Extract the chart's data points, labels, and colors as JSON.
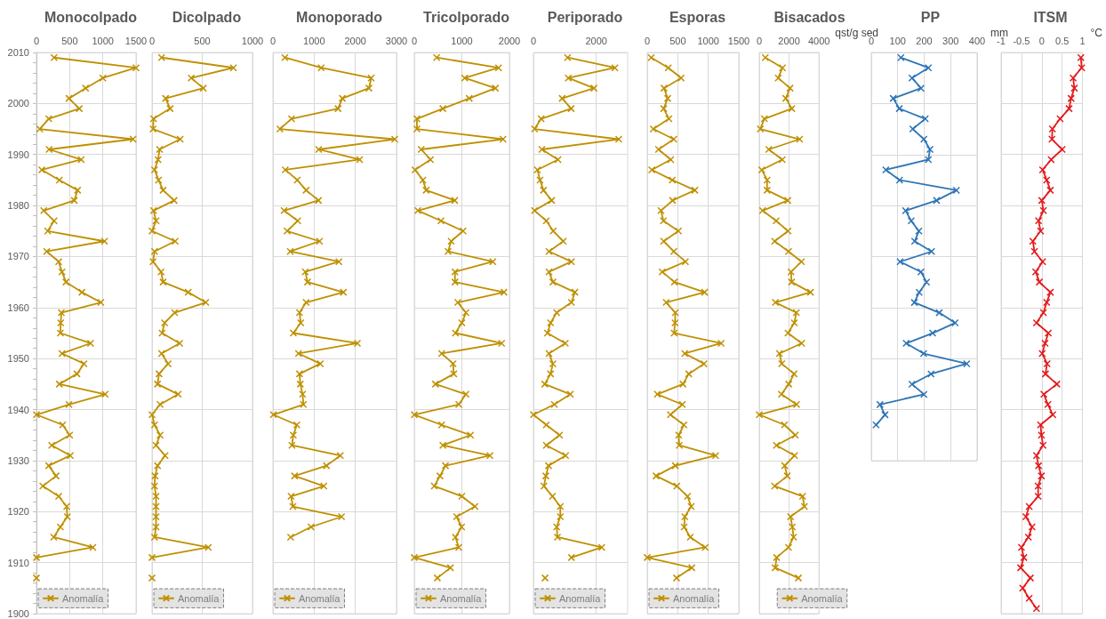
{
  "chart_data": [
    {
      "type": "line",
      "orientation": "horizontal",
      "title": "Monocolpado",
      "xlim": [
        0,
        1500
      ],
      "xticks": [
        0,
        500,
        1000,
        1500
      ],
      "ylim": [
        1900,
        2010
      ],
      "yticks": [
        1900,
        {
          "value": 1902,
          "label": null
        },
        {
          "value": 1904,
          "label": null
        },
        {
          "value": 1906,
          "label": null
        },
        {
          "value": 1908,
          "label": null
        },
        1910,
        {
          "value": 1912,
          "label": null
        },
        {
          "value": 1914,
          "label": null
        },
        {
          "value": 1916,
          "label": null
        },
        {
          "value": 1918,
          "label": null
        },
        1920,
        {
          "value": 1922,
          "label": null
        },
        {
          "value": 1924,
          "label": null
        },
        {
          "value": 1926,
          "label": null
        },
        {
          "value": 1928,
          "label": null
        },
        1930,
        {
          "value": 1932,
          "label": null
        },
        {
          "value": 1934,
          "label": null
        },
        {
          "value": 1936,
          "label": null
        },
        {
          "value": 1938,
          "label": null
        },
        1940,
        {
          "value": 1942,
          "label": null
        },
        {
          "value": 1944,
          "label": null
        },
        {
          "value": 1946,
          "label": null
        },
        {
          "value": 1948,
          "label": null
        },
        1950,
        {
          "value": 1952,
          "label": null
        },
        {
          "value": 1954,
          "label": null
        },
        {
          "value": 1956,
          "label": null
        },
        {
          "value": 1958,
          "label": null
        },
        1960,
        {
          "value": 1962,
          "label": null
        },
        {
          "value": 1964,
          "label": null
        },
        {
          "value": 1966,
          "label": null
        },
        {
          "value": 1968,
          "label": null
        },
        1970,
        {
          "value": 1972,
          "label": null
        },
        {
          "value": 1974,
          "label": null
        },
        {
          "value": 1976,
          "label": null
        },
        {
          "value": 1978,
          "label": null
        },
        1980,
        {
          "value": 1982,
          "label": null
        },
        {
          "value": 1984,
          "label": null
        },
        {
          "value": 1986,
          "label": null
        },
        {
          "value": 1988,
          "label": null
        },
        1990,
        {
          "value": 1992,
          "label": null
        },
        {
          "value": 1994,
          "label": null
        },
        {
          "value": 1996,
          "label": null
        },
        {
          "value": 1998,
          "label": null
        },
        2000,
        {
          "value": 2002,
          "label": null
        },
        {
          "value": 2004,
          "label": null
        },
        {
          "value": 2006,
          "label": null
        },
        {
          "value": 2008,
          "label": null
        },
        2010
      ],
      "grid": true,
      "legend": "bottom left",
      "marker": "cross",
      "line_style": "solid",
      "x": [
        2009,
        2007,
        2005,
        2003,
        2001,
        1999,
        1997,
        1995,
        1993,
        1991,
        1989,
        1987,
        1985,
        1983,
        1981,
        1979,
        1977,
        1975,
        1973,
        1971,
        1969,
        1967,
        1965,
        1963,
        1961,
        1959,
        1957,
        1955,
        1953,
        1951,
        1949,
        1947,
        1945,
        1943,
        1941,
        1939,
        1937,
        1935,
        1933,
        1931,
        1929,
        1927,
        1925,
        1923,
        1921,
        1919,
        1917,
        1915,
        1913,
        1911,
        1909,
        1907
      ],
      "series": [
        {
          "name": "Anomalía",
          "color": "#bf9000",
          "values": [
            265,
            1500,
            1000,
            740,
            490,
            645,
            185,
            50,
            1455,
            190,
            675,
            80,
            345,
            620,
            570,
            110,
            265,
            170,
            1025,
            155,
            335,
            385,
            445,
            685,
            970,
            375,
            365,
            360,
            815,
            385,
            715,
            610,
            345,
            1035,
            490,
            0,
            395,
            500,
            230,
            510,
            185,
            295,
            95,
            335,
            455,
            465,
            360,
            260,
            850,
            0,
            null,
            0
          ]
        }
      ]
    },
    {
      "type": "line",
      "orientation": "horizontal",
      "title": "Dicolpado",
      "xlim": [
        0,
        1000
      ],
      "xticks": [
        0,
        500,
        1000
      ],
      "ylim": [
        1900,
        2010
      ],
      "yticks": [
        1900,
        1910,
        1920,
        1930,
        1940,
        1950,
        1960,
        1970,
        1980,
        1990,
        2000,
        2010
      ],
      "tick_labels": "x",
      "grid": true,
      "legend": "bottom left",
      "marker": "cross",
      "line_style": "solid",
      "x": [
        2009,
        2007,
        2005,
        2003,
        2001,
        1999,
        1997,
        1995,
        1993,
        1991,
        1989,
        1987,
        1985,
        1983,
        1981,
        1979,
        1977,
        1975,
        1973,
        1971,
        1969,
        1967,
        1965,
        1963,
        1961,
        1959,
        1957,
        1955,
        1953,
        1951,
        1949,
        1947,
        1945,
        1943,
        1941,
        1939,
        1937,
        1935,
        1933,
        1931,
        1929,
        1927,
        1925,
        1923,
        1921,
        1919,
        1917,
        1915,
        1913,
        1911,
        1909,
        1907
      ],
      "series": [
        {
          "name": "Anomalía",
          "color": "#bf9000",
          "values": [
            95,
            810,
            390,
            510,
            135,
            180,
            15,
            10,
            280,
            75,
            60,
            25,
            65,
            110,
            220,
            15,
            40,
            0,
            230,
            25,
            10,
            90,
            110,
            360,
            535,
            225,
            125,
            100,
            275,
            95,
            160,
            70,
            55,
            260,
            80,
            0,
            25,
            80,
            40,
            130,
            55,
            30,
            25,
            40,
            40,
            40,
            40,
            25,
            560,
            0,
            null,
            0
          ]
        }
      ]
    },
    {
      "type": "line",
      "orientation": "horizontal",
      "title": "Monoporado",
      "xlim": [
        0,
        3000
      ],
      "xticks": [
        0,
        1000,
        2000,
        3000
      ],
      "ylim": [
        1900,
        2010
      ],
      "yticks": [
        1900,
        1910,
        1920,
        1930,
        1940,
        1950,
        1960,
        1970,
        1980,
        1990,
        2000,
        2010
      ],
      "tick_labels": "x",
      "grid": true,
      "legend": "bottom left",
      "marker": "cross",
      "line_style": "solid",
      "x": [
        2009,
        2007,
        2005,
        2003,
        2001,
        1999,
        1997,
        1995,
        1993,
        1991,
        1989,
        1987,
        1985,
        1983,
        1981,
        1979,
        1977,
        1975,
        1973,
        1971,
        1969,
        1967,
        1965,
        1963,
        1961,
        1959,
        1957,
        1955,
        1953,
        1951,
        1949,
        1947,
        1945,
        1943,
        1941,
        1939,
        1937,
        1935,
        1933,
        1931,
        1929,
        1927,
        1925,
        1923,
        1921,
        1919,
        1917,
        1915
      ],
      "series": [
        {
          "name": "Anomalía",
          "color": "#bf9000",
          "values": [
            290,
            1170,
            2385,
            2330,
            1685,
            1580,
            450,
            170,
            2955,
            1110,
            2105,
            300,
            590,
            805,
            1105,
            270,
            600,
            345,
            1130,
            420,
            1600,
            785,
            840,
            1710,
            805,
            645,
            675,
            495,
            2050,
            620,
            1150,
            645,
            665,
            720,
            740,
            10,
            580,
            495,
            460,
            1635,
            1300,
            525,
            1235,
            440,
            485,
            1665,
            925,
            430
          ]
        }
      ]
    },
    {
      "type": "line",
      "orientation": "horizontal",
      "title": "Tricolporado",
      "xlim": [
        0,
        2000
      ],
      "xticks": [
        0,
        1000,
        2000
      ],
      "ylim": [
        1900,
        2010
      ],
      "yticks": [
        1900,
        1910,
        1920,
        1930,
        1940,
        1950,
        1960,
        1970,
        1980,
        1990,
        2000,
        2010
      ],
      "tick_labels": "x",
      "grid": true,
      "legend": "bottom left",
      "marker": "cross",
      "line_style": "solid",
      "x": [
        2009,
        2007,
        2005,
        2003,
        2001,
        1999,
        1997,
        1995,
        1993,
        1991,
        1989,
        1987,
        1985,
        1983,
        1981,
        1979,
        1977,
        1975,
        1973,
        1971,
        1969,
        1967,
        1965,
        1963,
        1961,
        1959,
        1957,
        1955,
        1953,
        1951,
        1949,
        1947,
        1945,
        1943,
        1941,
        1939,
        1937,
        1935,
        1933,
        1931,
        1929,
        1927,
        1925,
        1923,
        1921,
        1919,
        1917,
        1915,
        1913,
        1911,
        1909,
        1907
      ],
      "series": [
        {
          "name": "Anomalía",
          "color": "#bf9000",
          "values": [
            470,
            1770,
            1060,
            1705,
            1155,
            600,
            55,
            55,
            1865,
            145,
            340,
            15,
            180,
            250,
            850,
            75,
            560,
            1025,
            775,
            710,
            1650,
            855,
            855,
            1885,
            915,
            1085,
            1000,
            865,
            1835,
            575,
            815,
            830,
            445,
            1085,
            935,
            0,
            575,
            1180,
            600,
            1590,
            655,
            540,
            420,
            1000,
            1275,
            890,
            995,
            865,
            935,
            0,
            760,
            485
          ]
        }
      ]
    },
    {
      "type": "line",
      "orientation": "horizontal",
      "title": "Periporado",
      "xlim": [
        0,
        3000
      ],
      "xticks": [
        0,
        2000
      ],
      "ylim": [
        1900,
        2010
      ],
      "yticks": [
        1900,
        1910,
        1920,
        1930,
        1940,
        1950,
        1960,
        1970,
        1980,
        1990,
        2000,
        2010
      ],
      "tick_labels": "x",
      "grid": true,
      "legend": "bottom left",
      "marker": "cross",
      "line_style": "solid",
      "x": [
        2009,
        2007,
        2005,
        2003,
        2001,
        1999,
        1997,
        1995,
        1993,
        1991,
        1989,
        1987,
        1985,
        1983,
        1981,
        1979,
        1977,
        1975,
        1973,
        1971,
        1969,
        1967,
        1965,
        1963,
        1961,
        1959,
        1957,
        1955,
        1953,
        1951,
        1949,
        1947,
        1945,
        1943,
        1941,
        1939,
        1937,
        1935,
        1933,
        1931,
        1929,
        1927,
        1925,
        1923,
        1921,
        1919,
        1917,
        1915,
        1913,
        1911,
        1909,
        1907
      ],
      "series": [
        {
          "name": "Anomalía",
          "color": "#bf9000",
          "values": [
            1085,
            2595,
            1110,
            1925,
            915,
            1200,
            245,
            35,
            2715,
            270,
            780,
            125,
            210,
            320,
            580,
            35,
            410,
            630,
            950,
            495,
            1210,
            495,
            620,
            1320,
            1210,
            740,
            545,
            445,
            1015,
            495,
            620,
            545,
            360,
            1175,
            665,
            0,
            410,
            830,
            410,
            1025,
            480,
            395,
            335,
            605,
            855,
            855,
            740,
            765,
            2175,
            1210,
            null,
            370
          ]
        }
      ]
    },
    {
      "type": "line",
      "orientation": "horizontal",
      "title": "Esporas",
      "xlim": [
        0,
        1500
      ],
      "xticks": [
        0,
        500,
        1000,
        1500
      ],
      "ylim": [
        1900,
        2010
      ],
      "yticks": [
        1900,
        1910,
        1920,
        1930,
        1940,
        1950,
        1960,
        1970,
        1980,
        1990,
        2000,
        2010
      ],
      "tick_labels": "x",
      "grid": true,
      "legend": "bottom left",
      "marker": "cross",
      "line_style": "solid",
      "x": [
        2009,
        2007,
        2005,
        2003,
        2001,
        1999,
        1997,
        1995,
        1993,
        1991,
        1989,
        1987,
        1985,
        1983,
        1981,
        1979,
        1977,
        1975,
        1973,
        1971,
        1969,
        1967,
        1965,
        1963,
        1961,
        1959,
        1957,
        1955,
        1953,
        1951,
        1949,
        1947,
        1945,
        1943,
        1941,
        1939,
        1937,
        1935,
        1933,
        1931,
        1929,
        1927,
        1925,
        1923,
        1921,
        1919,
        1917,
        1915,
        1913,
        1911,
        1909,
        1907
      ],
      "series": [
        {
          "name": "Anomalía",
          "color": "#bf9000",
          "values": [
            65,
            345,
            555,
            275,
            335,
            270,
            355,
            100,
            435,
            185,
            385,
            75,
            410,
            780,
            415,
            225,
            265,
            510,
            270,
            435,
            625,
            245,
            445,
            940,
            310,
            460,
            455,
            440,
            1210,
            615,
            930,
            680,
            585,
            165,
            575,
            380,
            600,
            515,
            525,
            1120,
            460,
            145,
            485,
            660,
            720,
            615,
            605,
            705,
            950,
            0,
            730,
            480
          ]
        }
      ]
    },
    {
      "type": "line",
      "orientation": "horizontal",
      "title": "Bisacados",
      "xlabel": "qst/g sed",
      "xlim": [
        0,
        4000
      ],
      "xticks": [
        0,
        2000,
        4000
      ],
      "ylim": [
        1900,
        2010
      ],
      "yticks": [
        1900,
        1910,
        1920,
        1930,
        1940,
        1950,
        1960,
        1970,
        1980,
        1990,
        2000,
        2010
      ],
      "tick_labels": "x",
      "grid": true,
      "legend": "bottom",
      "marker": "cross",
      "line_style": "solid",
      "x": [
        2009,
        2007,
        2005,
        2003,
        2001,
        1999,
        1997,
        1995,
        1993,
        1991,
        1989,
        1987,
        1985,
        1983,
        1981,
        1979,
        1977,
        1975,
        1973,
        1971,
        1969,
        1967,
        1965,
        1963,
        1961,
        1959,
        1957,
        1955,
        1953,
        1951,
        1949,
        1947,
        1945,
        1943,
        1941,
        1939,
        1937,
        1935,
        1933,
        1931,
        1929,
        1927,
        1925,
        1923,
        1921,
        1919,
        1917,
        1915,
        1913,
        1911,
        1909,
        1907
      ],
      "series": [
        {
          "name": "Anomalía",
          "color": "#bf9000",
          "values": [
            405,
            1555,
            1270,
            2060,
            1775,
            2180,
            340,
            70,
            2705,
            640,
            1540,
            170,
            525,
            525,
            1910,
            220,
            1130,
            1925,
            1030,
            1960,
            2825,
            2130,
            2165,
            3430,
            1080,
            2485,
            2350,
            1925,
            2840,
            1350,
            1505,
            2330,
            1975,
            1485,
            2500,
            0,
            1690,
            2415,
            1150,
            2365,
            1705,
            1875,
            1030,
            2905,
            3025,
            2095,
            2215,
            2300,
            1960,
            1165,
            1065,
            2620
          ]
        }
      ]
    },
    {
      "type": "line",
      "orientation": "horizontal",
      "title": "PP",
      "xlabel": "mm",
      "xlim": [
        0,
        400
      ],
      "xticks": [
        0,
        100,
        200,
        300,
        400
      ],
      "ylim": [
        1930,
        2010
      ],
      "yticks": [
        1930,
        1940,
        1950,
        1960,
        1970,
        1980,
        1990,
        2000,
        2010
      ],
      "tick_labels": "x",
      "grid": true,
      "marker": "cross",
      "line_style": "solid",
      "x": [
        2009,
        2007,
        2005,
        2003,
        2001,
        1999,
        1997,
        1995,
        1993,
        1991,
        1989,
        1987,
        1985,
        1983,
        1981,
        1979,
        1977,
        1975,
        1973,
        1971,
        1969,
        1967,
        1965,
        1963,
        1961,
        1959,
        1957,
        1955,
        1953,
        1951,
        1949,
        1947,
        1945,
        1943,
        1941,
        1939,
        1937
      ],
      "series": [
        {
          "color": "#2e75b6",
          "values": [
            112,
            216,
            154,
            188,
            83,
            106,
            204,
            157,
            199,
            222,
            216,
            55,
            107,
            322,
            247,
            130,
            151,
            180,
            164,
            228,
            109,
            188,
            209,
            181,
            163,
            257,
            317,
            232,
            132,
            198,
            361,
            226,
            154,
            199,
            33,
            52,
            18
          ]
        }
      ]
    },
    {
      "type": "line",
      "orientation": "horizontal",
      "title": "ITSM",
      "xlabel": "°C",
      "xlim": [
        -1,
        1
      ],
      "xticks": [
        -1,
        -0.5,
        0,
        0.5,
        1
      ],
      "ylim": [
        1900,
        2010
      ],
      "yticks": [
        1900,
        1910,
        1920,
        1930,
        1940,
        1950,
        1960,
        1970,
        1980,
        1990,
        2000,
        2010
      ],
      "tick_labels": "x",
      "grid": true,
      "marker": "cross",
      "line_style": "solid",
      "x": [
        2009,
        2007,
        2005,
        2003,
        2001,
        1999,
        1997,
        1995,
        1993,
        1991,
        1989,
        1987,
        1985,
        1983,
        1981,
        1979,
        1977,
        1975,
        1973,
        1971,
        1969,
        1967,
        1965,
        1963,
        1961,
        1959,
        1957,
        1955,
        1953,
        1951,
        1949,
        1947,
        1945,
        1943,
        1941,
        1939,
        1937,
        1935,
        1933,
        1931,
        1929,
        1927,
        1925,
        1923,
        1921,
        1919,
        1917,
        1915,
        1913,
        1911,
        1909,
        1907,
        1905,
        1903,
        1901
      ],
      "series": [
        {
          "color": "#e31a1c",
          "values": [
            0.96,
            0.98,
            0.77,
            0.8,
            0.72,
            0.67,
            0.45,
            0.26,
            0.25,
            0.5,
            0.23,
            0.02,
            0.12,
            0.21,
            0,
            0.04,
            -0.08,
            -0.03,
            -0.22,
            -0.18,
            0.02,
            -0.15,
            -0.06,
            0.21,
            0.12,
            0.04,
            -0.13,
            0.16,
            0.08,
            0.01,
            0.13,
            0.09,
            0.37,
            0.05,
            0.15,
            0.27,
            -0.03,
            -0.01,
            0.03,
            -0.13,
            -0.08,
            -0.01,
            -0.09,
            -0.09,
            -0.31,
            -0.39,
            -0.24,
            -0.33,
            -0.5,
            -0.44,
            -0.52,
            -0.28,
            -0.47,
            -0.31,
            -0.13
          ]
        }
      ]
    }
  ]
}
